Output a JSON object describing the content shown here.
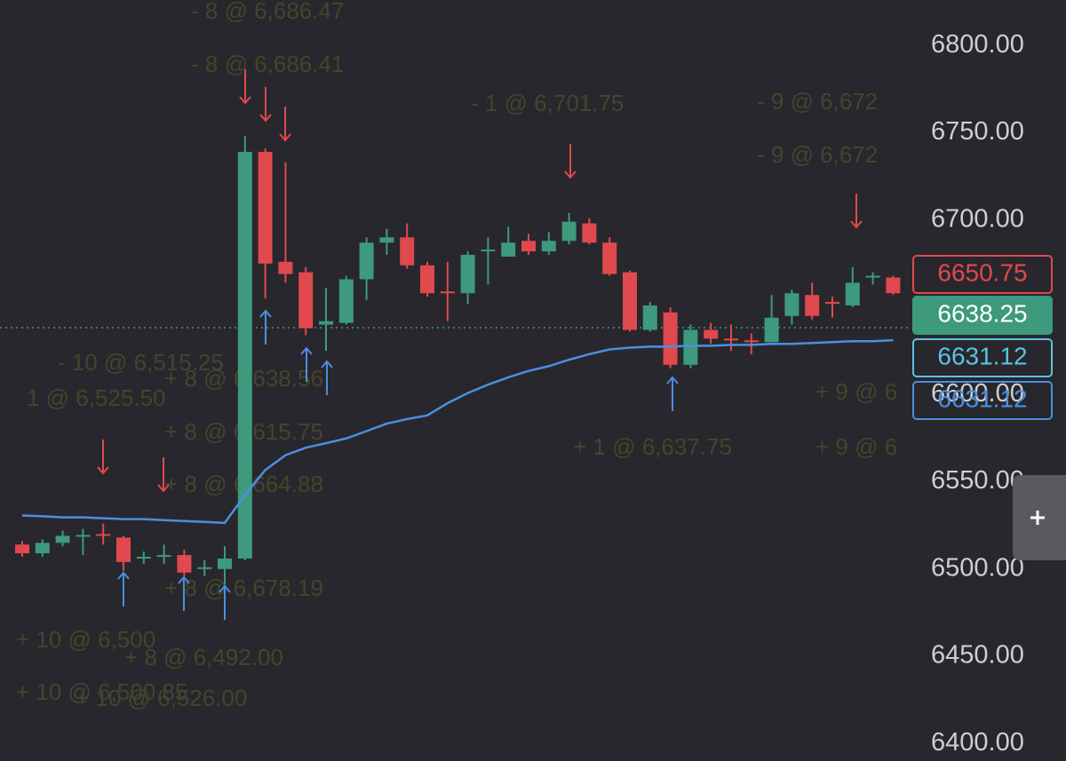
{
  "chart_data": {
    "type": "candlestick",
    "ylim": [
      6390,
      6826
    ],
    "yticks": [
      {
        "value": 6800,
        "label": "6800.00"
      },
      {
        "value": 6750,
        "label": "6750.00"
      },
      {
        "value": 6700,
        "label": "6700.00"
      },
      {
        "value": 6650,
        "label": "6650.00"
      },
      {
        "value": 6600,
        "label": "6600.00"
      },
      {
        "value": 6550,
        "label": "6550.00"
      },
      {
        "value": 6500,
        "label": "6500.00"
      },
      {
        "value": 6450,
        "label": "6450.00"
      },
      {
        "value": 6400,
        "label": "6400.00"
      }
    ],
    "up_color": "#3d9a7c",
    "down_color": "#e0494d",
    "open": [
      6514,
      6509,
      6515,
      6519,
      6520,
      6518,
      6506,
      6507,
      6508,
      6500,
      6500,
      6506,
      6739,
      6676,
      6670,
      6640,
      6641,
      6666,
      6687,
      6690,
      6674,
      6659,
      6658,
      6682,
      6679,
      6688,
      6682,
      6688,
      6698,
      6687,
      6670,
      6637,
      6647,
      6617,
      6637,
      6632,
      6631,
      6630,
      6645,
      6657,
      6653,
      6651,
      6667,
      6667
    ],
    "high": [
      6516,
      6517,
      6522,
      6523,
      6526,
      6519,
      6510,
      6514,
      6511,
      6505,
      6513,
      6748,
      6741,
      6733,
      6673,
      6661,
      6668,
      6690,
      6695,
      6698,
      6676,
      6676,
      6682,
      6690,
      6696,
      6692,
      6693,
      6704,
      6701,
      6690,
      6671,
      6653,
      6650,
      6640,
      6641,
      6640,
      6635,
      6657,
      6660,
      6664,
      6656,
      6673,
      6670,
      6668
    ],
    "low": [
      6507,
      6507,
      6513,
      6508,
      6514,
      6499,
      6503,
      6503,
      6496,
      6496,
      6491,
      6505,
      6655,
      6664,
      6634,
      6625,
      6640,
      6654,
      6680,
      6672,
      6656,
      6642,
      6652,
      6663,
      6679,
      6680,
      6680,
      6686,
      6686,
      6668,
      6636,
      6636,
      6615,
      6615,
      6629,
      6625,
      6623,
      6630,
      6640,
      6643,
      6644,
      6650,
      6663,
      6657
    ],
    "close": [
      6509,
      6515,
      6519,
      6519.5,
      6519,
      6504,
      6507,
      6508,
      6498,
      6501,
      6506,
      6739,
      6675,
      6669,
      6638,
      6642,
      6666,
      6687,
      6690,
      6674,
      6658,
      6658,
      6680,
      6683,
      6687,
      6682,
      6688,
      6699,
      6687,
      6669,
      6637,
      6651,
      6617,
      6637,
      6632,
      6631,
      6630,
      6644,
      6658,
      6645,
      6652,
      6664,
      6668,
      6658
    ],
    "vwap": {
      "color": "#4a8fe0",
      "values": [
        6530.7,
        6530.2,
        6529.6,
        6529.6,
        6529.1,
        6528.6,
        6528.6,
        6528.0,
        6527.5,
        6527.0,
        6526.4,
        6542.4,
        6556.7,
        6565.2,
        6569.5,
        6572.1,
        6574.8,
        6579.0,
        6583.3,
        6585.9,
        6588.0,
        6595.0,
        6600.8,
        6605.6,
        6609.8,
        6613.5,
        6616.2,
        6619.9,
        6623.1,
        6625.8,
        6626.8,
        6627.4,
        6627.4,
        6627.9,
        6627.9,
        6628.4,
        6628.4,
        6629.0,
        6629.0,
        6629.5,
        6630.0,
        6630.5,
        6630.5,
        6631.1
      ]
    },
    "price_tags": [
      {
        "value": 6650.75,
        "style": "down"
      },
      {
        "value": 6638.25,
        "style": "last"
      },
      {
        "value": 6631.12,
        "style": "cyan"
      },
      {
        "value": 6631.12,
        "style": "blue"
      }
    ],
    "annotations": [
      "- 8 @ 6,686.47",
      "- 8 @ 6,686.41",
      "- 1 @ 6,701.75",
      "- 9 @ 6,672",
      "- 9 @ 6,672",
      "- 10 @ 6,515.25",
      "1 @ 6,525.50",
      "+ 8 @ 6,638.56",
      "+ 8 @ 6,615.75",
      "+ 8 @ 6,664.88",
      "+ 1 @ 6,637.75",
      "+ 9 @ 6",
      "+ 9 @ 6",
      "+ 8 @ 6,678.19",
      "+ 10 @ 6,500",
      "+ 8 @ 6,492.00",
      "+ 10 @ 6,500.85",
      "+ 10 @ 6,526.00"
    ]
  }
}
